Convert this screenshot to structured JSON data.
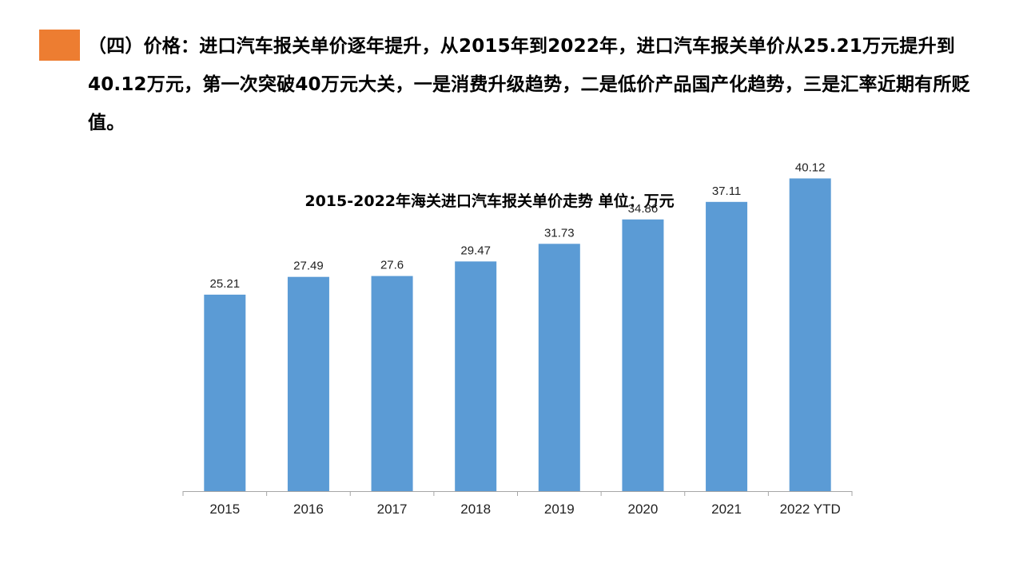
{
  "slide": {
    "heading": "（四）价格：进口汽车报关单价逐年提升，从2015年到2022年，进口汽车报关单价从25.21万元提升到40.12万元，第一次突破40万元大关，一是消费升级趋势，二是低价产品国产化趋势，三是汇率近期有所贬值。",
    "accent_color": "#ED7D31"
  },
  "chart_data": {
    "type": "bar",
    "title": "2015-2022年海关进口汽车报关单价走势 单位：万元",
    "categories": [
      "2015",
      "2016",
      "2017",
      "2018",
      "2019",
      "2020",
      "2021",
      "2022 YTD"
    ],
    "series": [
      {
        "values": [
          25.21,
          27.49,
          27.6,
          29.47,
          31.73,
          34.86,
          37.11,
          40.12
        ],
        "labels": [
          "25.21",
          "27.49",
          "27.6",
          "29.47",
          "31.73",
          "34.86",
          "37.11",
          "40.12"
        ],
        "color": "#5B9BD5"
      }
    ],
    "xlabel": "",
    "ylabel": "",
    "ylim": [
      0,
      45
    ],
    "grid": false,
    "legend": "none",
    "data_labels": true
  }
}
